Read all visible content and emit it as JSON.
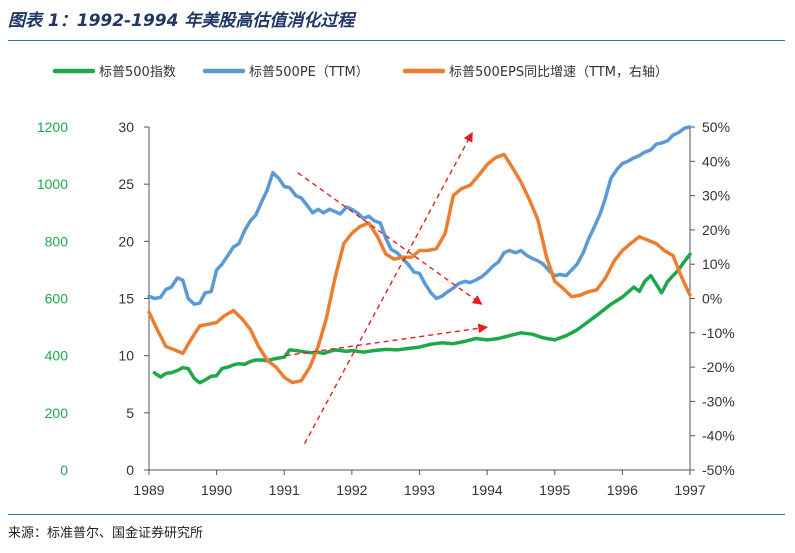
{
  "title": "图表 1：1992-1994 年美股高估值消化过程",
  "source": "来源：标准普尔、国金证券研究所",
  "colors": {
    "sp500": "#1fa84a",
    "pe": "#5b9bd5",
    "eps": "#ed7d31",
    "annotation": "#e02020",
    "accent": "#2e74b5"
  },
  "chart_data": {
    "type": "line",
    "x_ticks": [
      "1989",
      "1990",
      "1991",
      "1992",
      "1993",
      "1994",
      "1995",
      "1996",
      "1997"
    ],
    "x_range": [
      1989.0,
      1997.0
    ],
    "axes": {
      "left_outer": {
        "ticks": [
          "1200",
          "1000",
          "800",
          "600",
          "400",
          "200",
          "0"
        ],
        "range": [
          0,
          1200
        ],
        "series": "标普500指数"
      },
      "left_inner": {
        "ticks": [
          "30",
          "25",
          "20",
          "15",
          "10",
          "5",
          "0"
        ],
        "range": [
          0,
          30
        ],
        "series": "标普500PE（TTM）"
      },
      "right": {
        "ticks": [
          "50%",
          "40%",
          "30%",
          "20%",
          "10%",
          "0%",
          "-10%",
          "-20%",
          "-30%",
          "-40%",
          "-50%"
        ],
        "range": [
          -50,
          50
        ],
        "series": "标普500EPS同比增速（TTM，右轴）"
      }
    },
    "legend_position": "top",
    "series": [
      {
        "name": "标普500指数",
        "axis": "left_outer",
        "color": "#1fa84a",
        "x": [
          1989.08,
          1989.17,
          1989.25,
          1989.33,
          1989.42,
          1989.5,
          1989.58,
          1989.67,
          1989.75,
          1989.83,
          1989.92,
          1990.0,
          1990.08,
          1990.17,
          1990.25,
          1990.33,
          1990.42,
          1990.5,
          1990.58,
          1990.67,
          1990.75,
          1990.83,
          1990.92,
          1991.0,
          1991.08,
          1991.17,
          1991.25,
          1991.33,
          1991.42,
          1991.5,
          1991.58,
          1991.67,
          1991.75,
          1991.83,
          1991.92,
          1992.0,
          1992.17,
          1992.33,
          1992.5,
          1992.67,
          1992.83,
          1993.0,
          1993.17,
          1993.33,
          1993.5,
          1993.67,
          1993.83,
          1994.0,
          1994.17,
          1994.33,
          1994.5,
          1994.67,
          1994.83,
          1995.0,
          1995.17,
          1995.33,
          1995.5,
          1995.67,
          1995.83,
          1996.0,
          1996.17,
          1996.25,
          1996.33,
          1996.42,
          1996.5,
          1996.58,
          1996.67,
          1996.75,
          1996.83,
          1996.92,
          1997.0
        ],
        "values": [
          340,
          325,
          338,
          340,
          348,
          358,
          355,
          320,
          305,
          315,
          328,
          330,
          355,
          360,
          368,
          372,
          370,
          380,
          385,
          385,
          382,
          388,
          392,
          395,
          420,
          418,
          415,
          412,
          410,
          412,
          408,
          415,
          420,
          418,
          415,
          418,
          412,
          418,
          422,
          420,
          425,
          430,
          440,
          445,
          442,
          450,
          460,
          455,
          460,
          470,
          480,
          475,
          462,
          455,
          470,
          490,
          520,
          550,
          580,
          605,
          640,
          625,
          660,
          680,
          650,
          620,
          660,
          680,
          700,
          730,
          755
        ]
      },
      {
        "name": "标普500PE（TTM）",
        "axis": "left_inner",
        "color": "#5b9bd5",
        "x": [
          1989.0,
          1989.08,
          1989.17,
          1989.25,
          1989.33,
          1989.42,
          1989.5,
          1989.58,
          1989.67,
          1989.75,
          1989.83,
          1989.92,
          1990.0,
          1990.08,
          1990.17,
          1990.25,
          1990.33,
          1990.42,
          1990.5,
          1990.58,
          1990.67,
          1990.75,
          1990.83,
          1990.92,
          1991.0,
          1991.08,
          1991.17,
          1991.25,
          1991.33,
          1991.42,
          1991.5,
          1991.58,
          1991.67,
          1991.75,
          1991.83,
          1991.92,
          1992.0,
          1992.08,
          1992.17,
          1992.25,
          1992.33,
          1992.42,
          1992.5,
          1992.58,
          1992.67,
          1992.75,
          1992.83,
          1992.92,
          1993.0,
          1993.08,
          1993.17,
          1993.25,
          1993.33,
          1993.42,
          1993.5,
          1993.58,
          1993.67,
          1993.75,
          1993.83,
          1993.92,
          1994.0,
          1994.08,
          1994.17,
          1994.25,
          1994.33,
          1994.42,
          1994.5,
          1994.58,
          1994.67,
          1994.75,
          1994.83,
          1994.92,
          1995.0,
          1995.08,
          1995.17,
          1995.25,
          1995.33,
          1995.42,
          1995.5,
          1995.58,
          1995.67,
          1995.75,
          1995.83,
          1995.92,
          1996.0,
          1996.08,
          1996.17,
          1996.25,
          1996.33,
          1996.42,
          1996.5,
          1996.58,
          1996.67,
          1996.75,
          1996.83,
          1996.92,
          1997.0
        ],
        "values": [
          15.2,
          15.0,
          15.1,
          15.8,
          16.0,
          16.8,
          16.6,
          15.0,
          14.5,
          14.6,
          15.5,
          15.6,
          17.5,
          18.0,
          18.8,
          19.5,
          19.8,
          21.0,
          21.8,
          22.3,
          23.5,
          24.5,
          26.0,
          25.5,
          24.8,
          24.7,
          24.0,
          23.8,
          23.2,
          22.5,
          22.8,
          22.5,
          22.8,
          22.6,
          22.4,
          23.0,
          22.8,
          22.5,
          22.0,
          22.2,
          21.8,
          21.6,
          20.3,
          19.3,
          19.0,
          18.5,
          18.0,
          17.3,
          17.2,
          16.3,
          15.5,
          15.0,
          15.2,
          15.6,
          15.9,
          16.3,
          16.5,
          16.4,
          16.6,
          16.9,
          17.3,
          17.8,
          18.2,
          19.0,
          19.2,
          19.0,
          19.2,
          18.8,
          18.5,
          18.3,
          18.0,
          17.4,
          17.0,
          17.1,
          17.0,
          17.5,
          18.0,
          19.0,
          20.2,
          21.2,
          22.4,
          23.8,
          25.5,
          26.3,
          26.8,
          27.0,
          27.3,
          27.5,
          27.8,
          28.0,
          28.5,
          28.6,
          28.8,
          29.3,
          29.5,
          29.9,
          30.0
        ]
      },
      {
        "name": "标普500EPS同比增速（TTM，右轴）",
        "axis": "right",
        "color": "#ed7d31",
        "x": [
          1989.0,
          1989.12,
          1989.25,
          1989.38,
          1989.5,
          1989.62,
          1989.75,
          1989.88,
          1990.0,
          1990.12,
          1990.25,
          1990.38,
          1990.5,
          1990.62,
          1990.75,
          1990.88,
          1991.0,
          1991.12,
          1991.25,
          1991.38,
          1991.5,
          1991.62,
          1991.75,
          1991.88,
          1992.0,
          1992.12,
          1992.25,
          1992.38,
          1992.5,
          1992.62,
          1992.75,
          1992.88,
          1993.0,
          1993.12,
          1993.25,
          1993.38,
          1993.5,
          1993.62,
          1993.75,
          1993.88,
          1994.0,
          1994.12,
          1994.25,
          1994.38,
          1994.5,
          1994.62,
          1994.75,
          1994.88,
          1995.0,
          1995.12,
          1995.25,
          1995.38,
          1995.5,
          1995.62,
          1995.75,
          1995.88,
          1996.0,
          1996.12,
          1996.25,
          1996.38,
          1996.5,
          1996.62,
          1996.75,
          1996.88,
          1997.0
        ],
        "values": [
          -4,
          -9,
          -14,
          -15,
          -16,
          -12,
          -8,
          -7.5,
          -7,
          -5,
          -3.5,
          -6,
          -9,
          -14,
          -18,
          -20,
          -23,
          -24.5,
          -24,
          -20,
          -14,
          -6,
          6,
          16,
          19,
          21,
          22,
          18,
          13,
          11.5,
          12,
          12,
          14,
          14,
          14.5,
          19,
          30,
          32,
          33,
          36,
          39,
          41,
          42,
          38,
          34,
          29,
          23,
          12,
          5,
          3,
          0.5,
          1,
          2,
          2.5,
          6,
          11,
          14,
          16,
          18,
          17,
          16,
          14,
          12.5,
          6,
          1
        ]
      }
    ],
    "annotations": [
      {
        "type": "arrow",
        "from": {
          "x": 1991.02,
          "y": 10.0
        },
        "to": {
          "x": 1994.0,
          "y": 12.5
        },
        "axis": "left_inner",
        "style": "dashed"
      },
      {
        "type": "arrow",
        "from": {
          "x": 1991.2,
          "y": 26.0
        },
        "to": {
          "x": 1993.92,
          "y": 14.5
        },
        "axis": "left_inner",
        "style": "dashed"
      },
      {
        "type": "arrow",
        "from": {
          "x": 1991.3,
          "y": 2.3
        },
        "to": {
          "x": 1993.78,
          "y": 29.5
        },
        "axis": "left_inner",
        "style": "dashed"
      }
    ]
  }
}
